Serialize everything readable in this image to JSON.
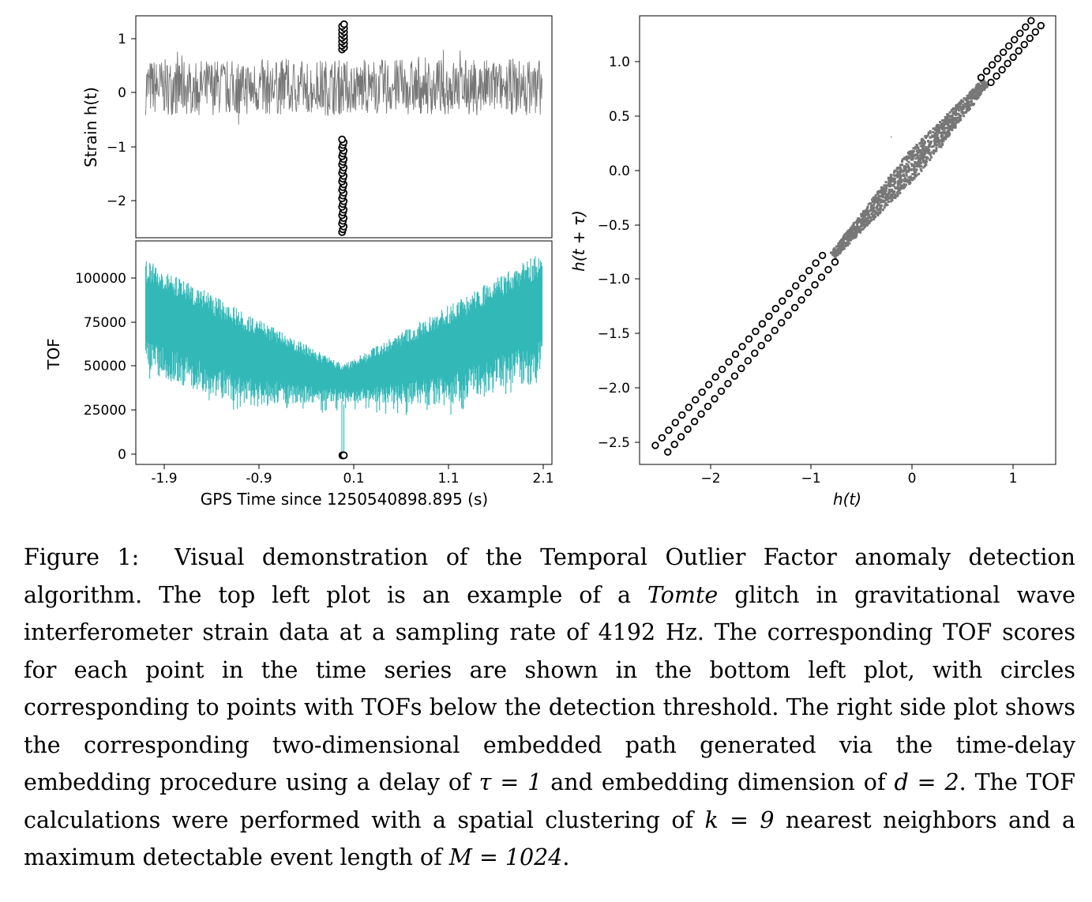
{
  "figure": {
    "top_left": {
      "ylabel": "Strain h(t)",
      "yticks": [
        "1",
        "0",
        "−1",
        "−2"
      ]
    },
    "bottom_left": {
      "ylabel": "TOF",
      "yticks": [
        "100000",
        "75000",
        "50000",
        "25000",
        "0"
      ],
      "xticks": [
        "-1.9",
        "-0.9",
        "0.1",
        "1.1",
        "2.1"
      ],
      "xlabel": "GPS Time since 1250540898.895 (s)"
    },
    "right": {
      "ylabel": "h(t + τ)",
      "xlabel": "h(t)",
      "yticks": [
        "1.0",
        "0.5",
        "0.0",
        "−0.5",
        "−1.0",
        "−1.5",
        "−2.0",
        "−2.5"
      ],
      "xticks": [
        "−2",
        "−1",
        "0",
        "1"
      ]
    }
  },
  "chart_data": [
    {
      "type": "line",
      "title": "",
      "xlabel": "",
      "ylabel": "Strain h(t)",
      "xlim": [
        -2.0,
        2.2
      ],
      "ylim": [
        -2.6,
        1.35
      ],
      "series": [
        {
          "name": "strain",
          "color": "#777777",
          "description": "noise between about -0.5 and 0.7 across the whole window"
        },
        {
          "name": "outliers",
          "color": "#000000",
          "marker": "open-circle",
          "x": 0.09,
          "y_upper": [
            0.75,
            1.2
          ],
          "y_lower": [
            -2.5,
            -0.85
          ]
        }
      ]
    },
    {
      "type": "line",
      "title": "",
      "xlabel": "GPS Time since 1250540898.895 (s)",
      "ylabel": "TOF",
      "xticks": [
        -1.9,
        -0.9,
        0.1,
        1.1,
        2.1
      ],
      "xlim": [
        -2.0,
        2.2
      ],
      "ylim": [
        -5000,
        118000
      ],
      "series": [
        {
          "name": "TOF",
          "color": "#33b8b8",
          "upper_envelope": [
            [
              -1.9,
              108000
            ],
            [
              0.1,
              50000
            ],
            [
              2.1,
              112000
            ]
          ],
          "lower_envelope": [
            [
              -1.9,
              45000
            ],
            [
              -0.9,
              27000
            ],
            [
              0.1,
              30000
            ],
            [
              1.1,
              27000
            ],
            [
              2.1,
              42000
            ]
          ]
        },
        {
          "name": "below-threshold",
          "color": "#000000",
          "marker": "open-circle",
          "x": 0.09,
          "y": 0
        }
      ]
    },
    {
      "type": "scatter",
      "title": "",
      "xlabel": "h(t)",
      "ylabel": "h(t + τ)",
      "xticks": [
        -2,
        -1,
        0,
        1
      ],
      "yticks": [
        1.0,
        0.5,
        0.0,
        -0.5,
        -1.0,
        -1.5,
        -2.0,
        -2.5
      ],
      "xlim": [
        -2.7,
        1.4
      ],
      "ylim": [
        -2.62,
        1.27
      ],
      "series": [
        {
          "name": "embedded path",
          "color": "#777777",
          "x_range": [
            -0.8,
            0.7
          ]
        },
        {
          "name": "anomalous points",
          "color": "#000000",
          "marker": "open-circle",
          "x_ranges": [
            [
              -2.5,
              -0.82
            ],
            [
              0.7,
              1.22
            ]
          ]
        }
      ]
    }
  ],
  "caption": {
    "label": "Figure 1:",
    "p1": "Visual demonstration of the Temporal Outlier Factor anomaly detection algorithm.  The top left plot is an example of a ",
    "it1": "Tomte",
    "p2": " glitch in gravitational wave interferometer strain data at a sampling rate of 4192 Hz.  The corresponding TOF scores for each point in the time series are shown in the bottom left plot, with circles corresponding to points with TOFs below the detection threshold. The right side plot shows the corresponding two-dimensional embedded path generated via the time-delay embedding procedure using a delay of ",
    "tau": "τ = 1",
    "p3": " and embedding dimension of ",
    "d": "d = 2",
    "p4": ".  The TOF calculations were performed with a spatial clustering of ",
    "k": "k = 9",
    "p5": " nearest neighbors and a maximum detectable event length of ",
    "m": "M = 1024",
    "p6": "."
  }
}
